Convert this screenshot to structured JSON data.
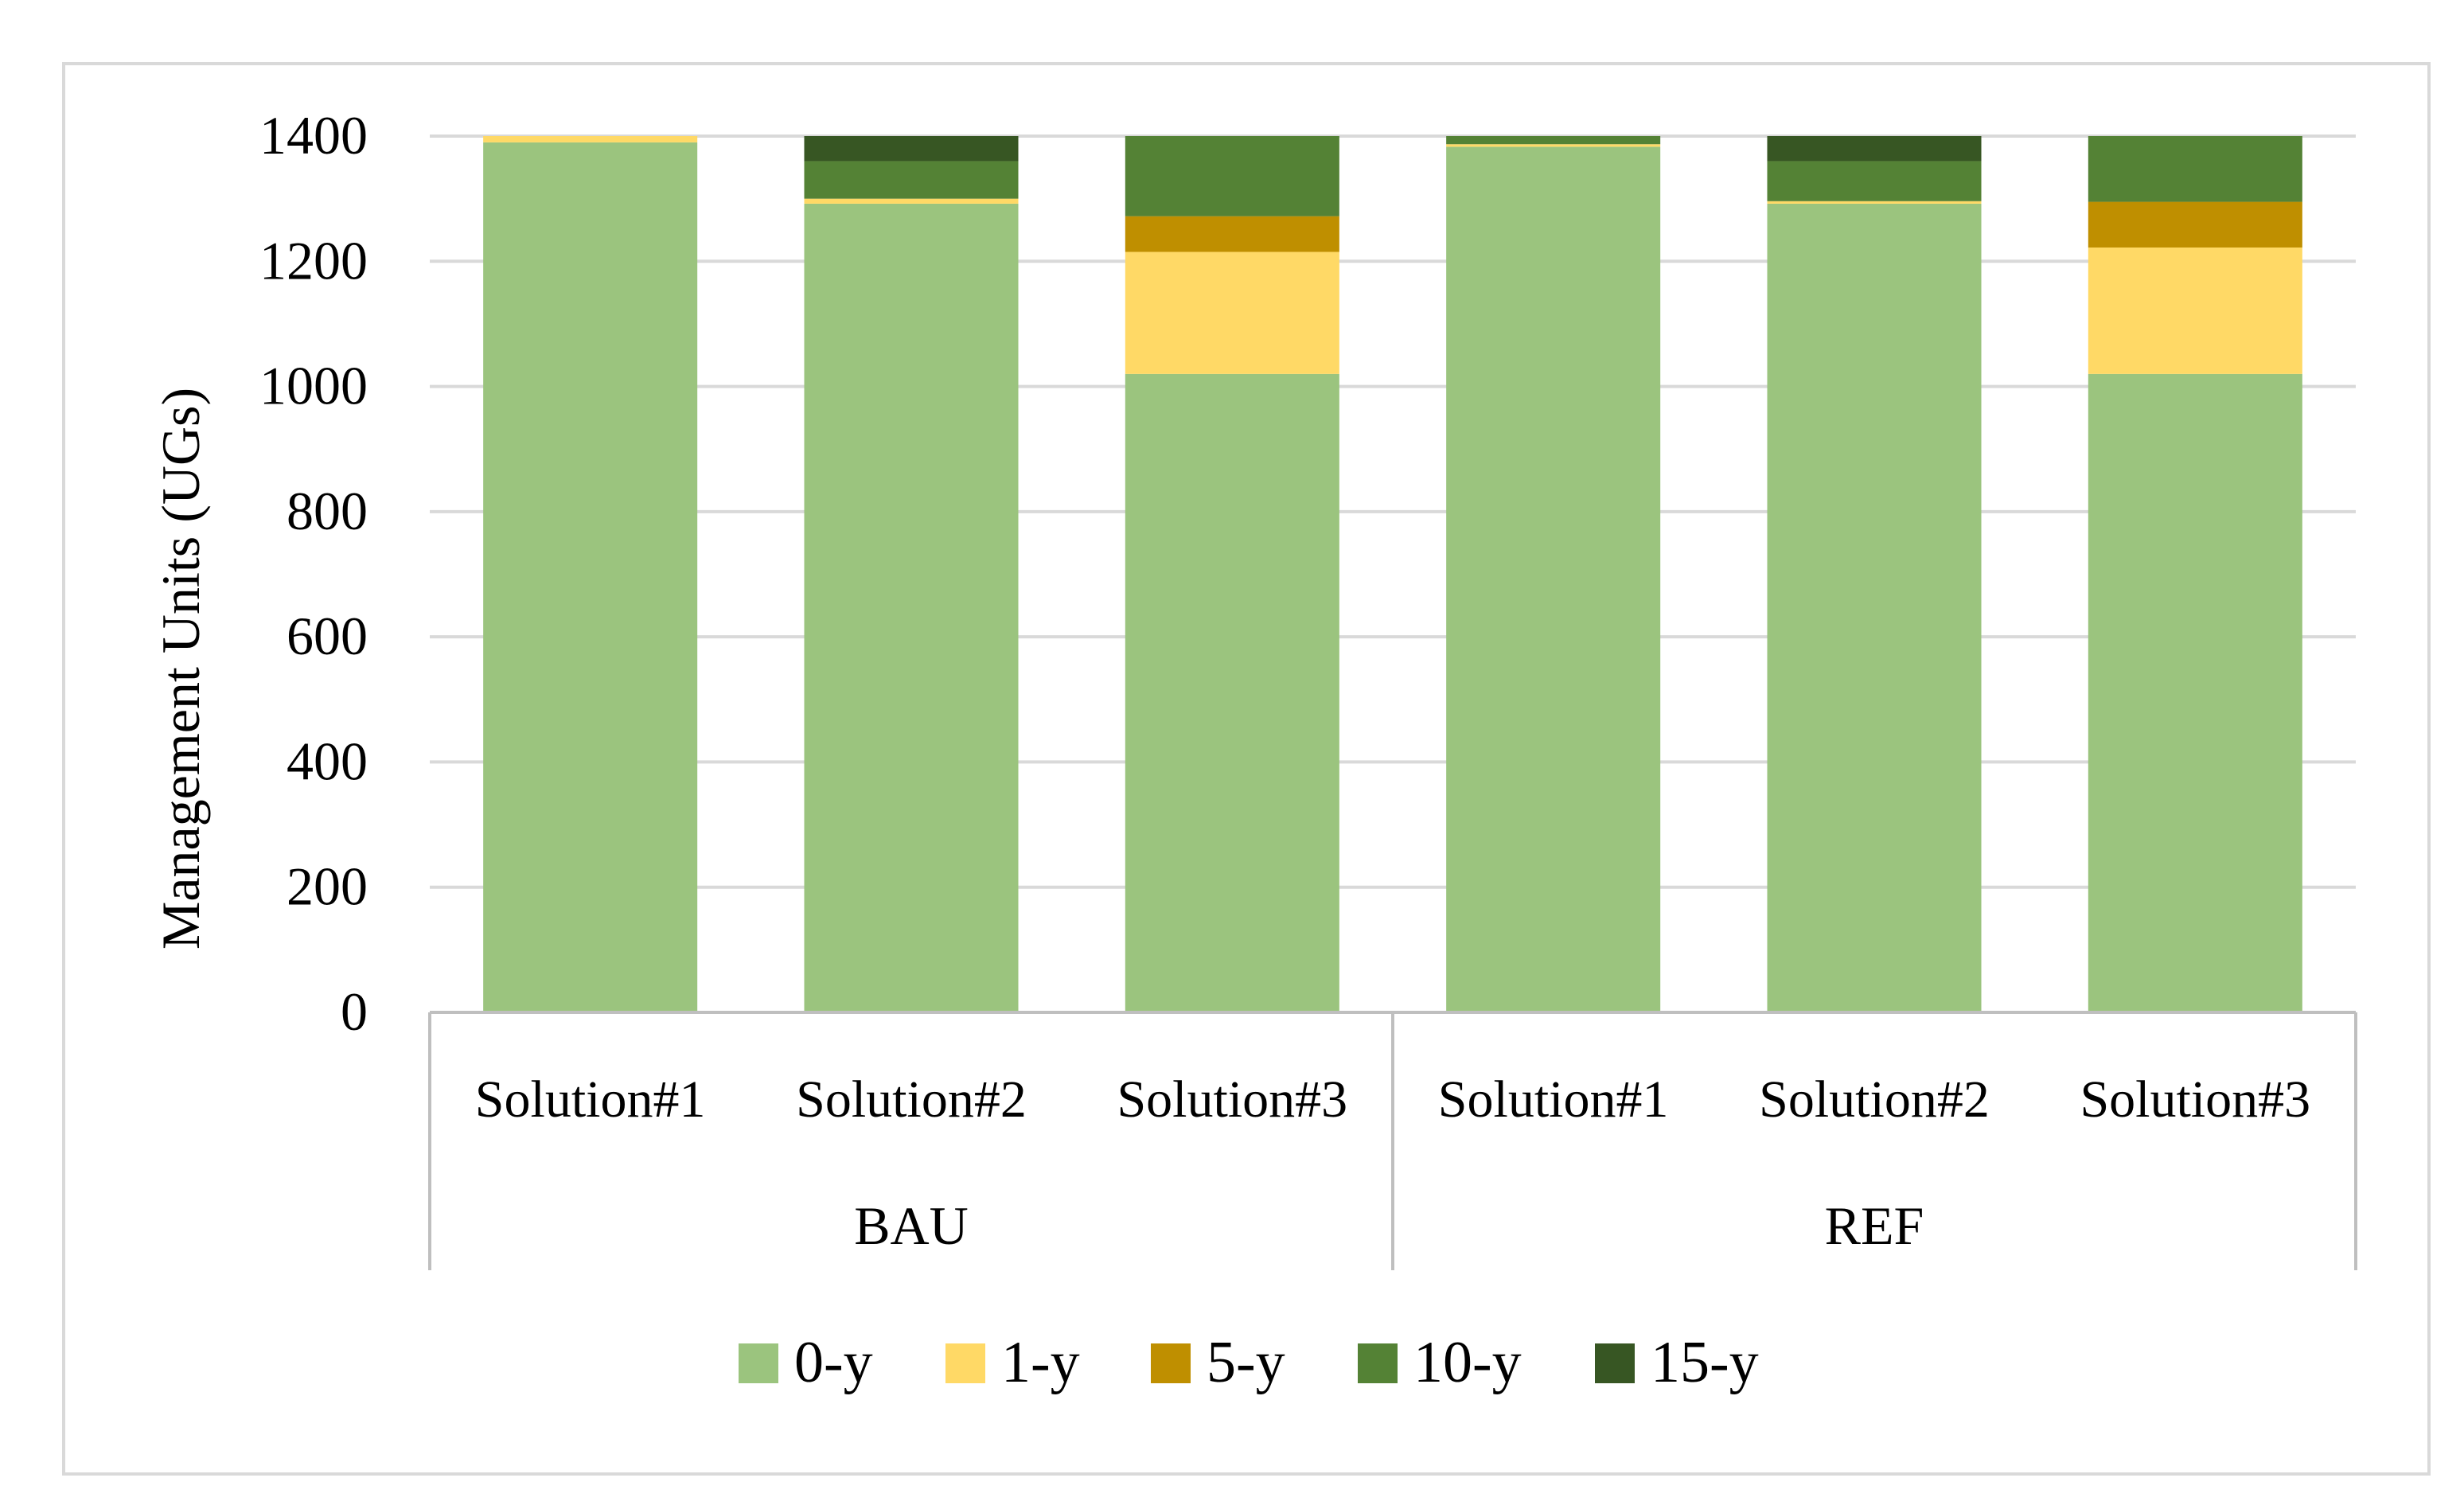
{
  "chart_data": {
    "type": "bar",
    "stacked": true,
    "title": "",
    "ylabel": "Management Units (UGs)",
    "xlabel": "",
    "ylim": [
      0,
      1400
    ],
    "yticks": [
      "0",
      "200",
      "400",
      "600",
      "800",
      "1000",
      "1200",
      "1400"
    ],
    "grid": true,
    "legend_position": "bottom",
    "groups": [
      {
        "label": "BAU",
        "categories": [
          "Solution#1",
          "Solution#2",
          "Solution#3"
        ]
      },
      {
        "label": "REF",
        "categories": [
          "Solution#1",
          "Solution#2",
          "Solution#3"
        ]
      }
    ],
    "series": [
      {
        "name": "0-y",
        "color": "#9bc47e",
        "values": [
          1390,
          1292,
          1020,
          1383,
          1292,
          1020
        ]
      },
      {
        "name": "1-y",
        "color": "#ffd966",
        "values": [
          10,
          8,
          195,
          4,
          4,
          202
        ]
      },
      {
        "name": "5-y",
        "color": "#bf8f00",
        "values": [
          0,
          0,
          57,
          0,
          0,
          73
        ]
      },
      {
        "name": "10-y",
        "color": "#548235",
        "values": [
          0,
          60,
          128,
          13,
          64,
          105
        ]
      },
      {
        "name": "15-y",
        "color": "#375623",
        "values": [
          0,
          40,
          0,
          0,
          40,
          0
        ]
      }
    ]
  }
}
